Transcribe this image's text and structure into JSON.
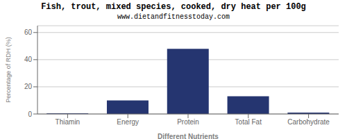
{
  "chart_data": {
    "type": "bar",
    "title": "Fish, trout, mixed species, cooked, dry heat per 100g",
    "subtitle": "www.dietandfitnesstoday.com",
    "categories": [
      "Thiamin",
      "Energy",
      "Protein",
      "Total Fat",
      "Carbohydrate"
    ],
    "values": [
      0.5,
      10,
      48,
      13,
      1
    ],
    "color": "#253570",
    "xlabel": "Different Nutrients",
    "ylabel": "Percentage of RDH (%)",
    "ylim": [
      0,
      65
    ],
    "yticks": [
      0,
      20,
      40,
      60
    ],
    "grid": true
  }
}
